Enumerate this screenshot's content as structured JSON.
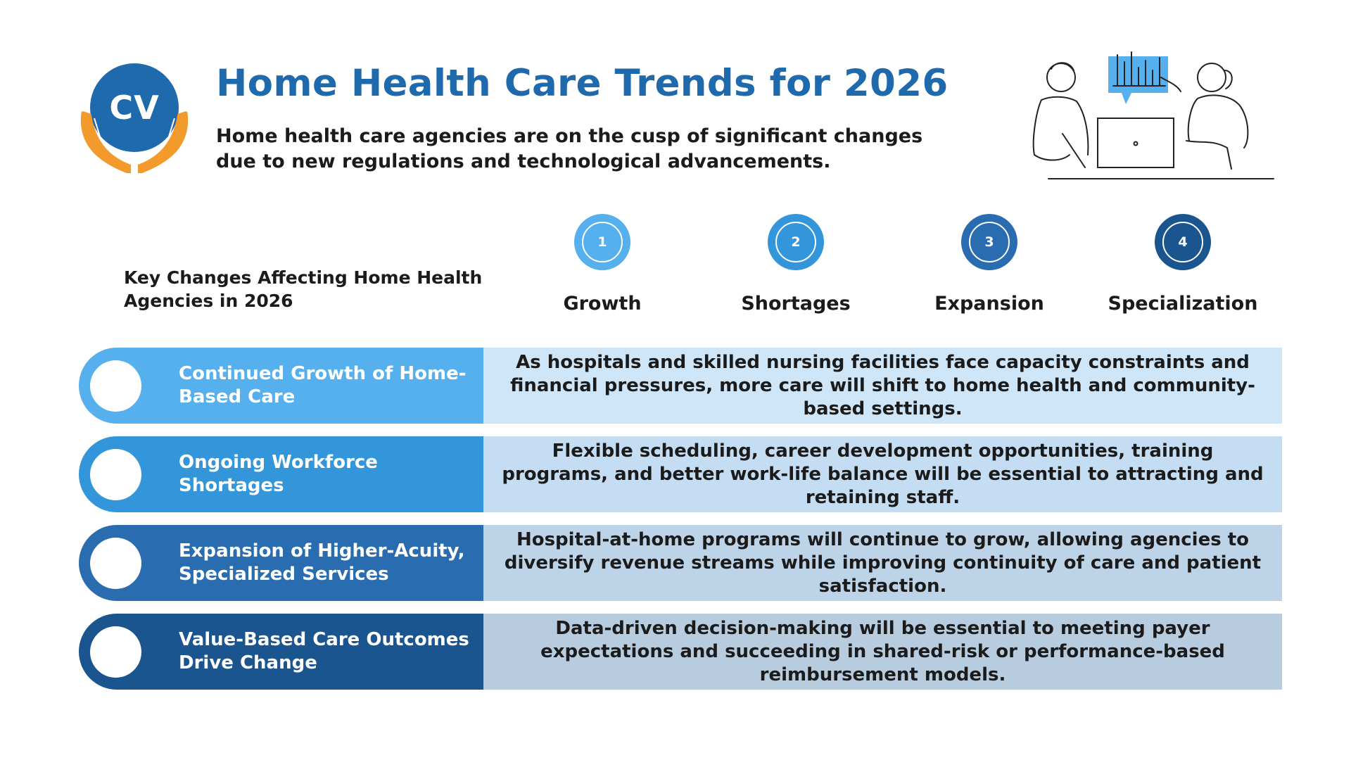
{
  "logo": {
    "initials": "CV"
  },
  "header": {
    "title": "Home Health Care Trends for 2026",
    "subtitle": "Home health care agencies are on the cusp of significant changes due to new regulations and technological advancements."
  },
  "key_changes": {
    "heading": "Key Changes Affecting Home Health Agencies in 2026",
    "steps": [
      {
        "number": "1",
        "label": "Growth",
        "color": "#56b0ee"
      },
      {
        "number": "2",
        "label": "Shortages",
        "color": "#3396da"
      },
      {
        "number": "3",
        "label": "Expansion",
        "color": "#2a6cb0"
      },
      {
        "number": "4",
        "label": "Specialization",
        "color": "#1a5590"
      }
    ]
  },
  "rows": [
    {
      "title": "Continued Growth of Home-Based Care",
      "description": "As hospitals and skilled nursing facilities face capacity constraints and financial pressures, more care will shift to home health and community-based settings.",
      "accent": "#56b0ee",
      "panel": "#cfe6f8"
    },
    {
      "title": "Ongoing Workforce Shortages",
      "description": "Flexible scheduling, career development opportunities, training programs, and better work-life balance will be essential to attracting and retaining staff.",
      "accent": "#3396da",
      "panel": "#c4ddf2"
    },
    {
      "title": "Expansion of Higher-Acuity, Specialized Services",
      "description": "Hospital-at-home programs will continue to grow, allowing agencies to diversify revenue streams while improving continuity of care and patient satisfaction.",
      "accent": "#2a6cb0",
      "panel": "#bdd3e8"
    },
    {
      "title": "Value-Based Care Outcomes Drive Change",
      "description": "Data-driven decision-making will be essential to meeting payer expectations and succeeding in shared-risk or performance-based reimbursement models.",
      "accent": "#1a5590",
      "panel": "#b8cce0"
    }
  ]
}
